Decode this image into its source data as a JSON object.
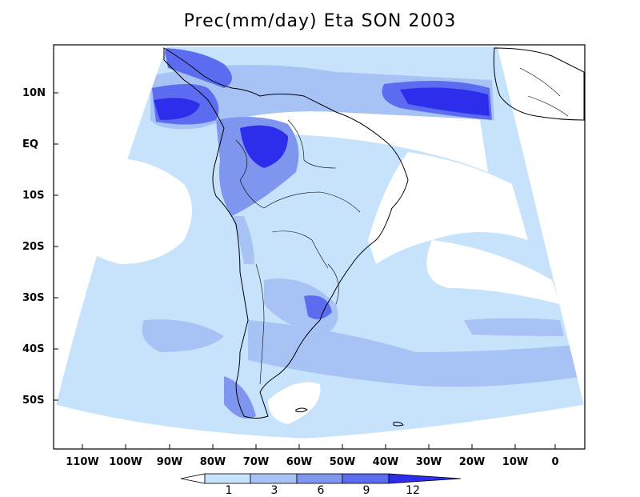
{
  "map": {
    "title": "Prec(mm/day) Eta SON 2003",
    "lat_labels": [
      "10N",
      "EQ",
      "10S",
      "20S",
      "30S",
      "40S",
      "50S"
    ],
    "lon_labels": [
      "110W",
      "100W",
      "90W",
      "80W",
      "70W",
      "60W",
      "50W",
      "40W",
      "30W",
      "20W",
      "10W",
      "0"
    ],
    "colorbar": {
      "levels": [
        "1",
        "3",
        "6",
        "9",
        "12"
      ],
      "colors": [
        "#ffffff",
        "#c7e2fb",
        "#a7c3f5",
        "#7e96ee",
        "#5c6cf0",
        "#2d2eeb"
      ]
    }
  }
}
